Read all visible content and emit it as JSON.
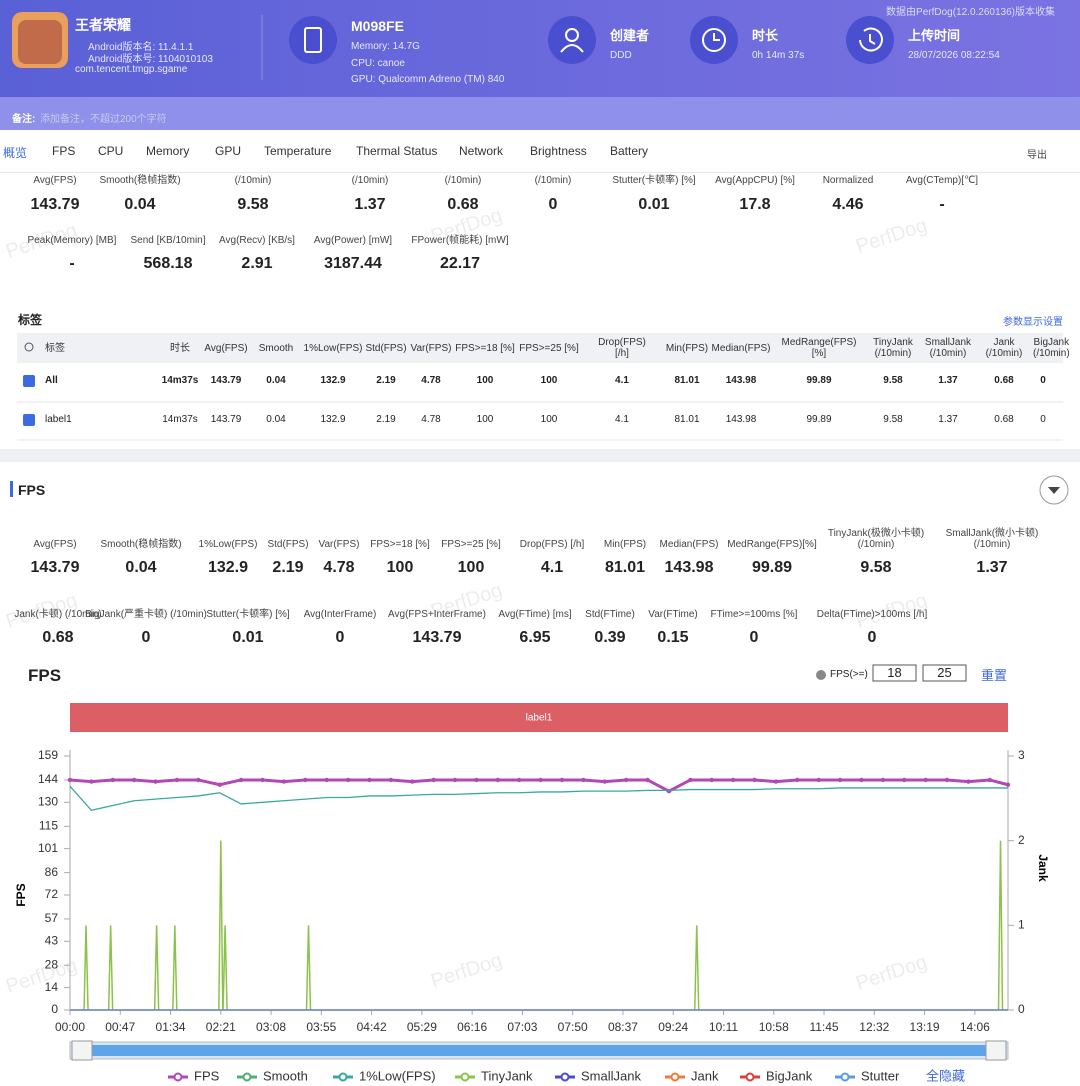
{
  "header": {
    "app_name": "王者荣耀",
    "version_name": "Android版本名: 11.4.1.1",
    "version_code": "Android版本号: 1104010103",
    "package": "com.tencent.tmgp.sgame",
    "device": "M098FE",
    "memory": "Memory: 14.7G",
    "cpu": "CPU: canoe",
    "gpu": "GPU: Qualcomm Adreno (TM) 840",
    "creator_label": "创建者",
    "creator": "DDD",
    "duration_label": "时长",
    "duration": "0h 14m 37s",
    "upload_label": "上传时间",
    "upload_time": "28/07/2026 08:22:54",
    "source_note": "数据由PerfDog(12.0.260136)版本收集"
  },
  "note": {
    "label": "备注:",
    "placeholder": "添加备注，不超过200个字符"
  },
  "tabs": [
    "概览",
    "FPS",
    "CPU",
    "Memory",
    "GPU",
    "Temperature",
    "Thermal Status",
    "Network",
    "Brightness",
    "Battery"
  ],
  "export": "导出",
  "summary": {
    "rows": [
      [
        {
          "label": "Avg(FPS)",
          "value": "143.79"
        },
        {
          "label": "Smooth(稳帧指数)",
          "value": "0.04"
        },
        {
          "label": "(/10min)",
          "value": "9.58"
        },
        {
          "label": "(/10min)",
          "value": "1.37"
        },
        {
          "label": "(/10min)",
          "value": "0.68"
        },
        {
          "label": "(/10min)",
          "value": "0"
        },
        {
          "label": "Stutter(卡顿率) [%]",
          "value": "0.01"
        },
        {
          "label": "Avg(AppCPU) [%]",
          "value": "17.8"
        },
        {
          "label": "Normalized",
          "value": "4.46"
        },
        {
          "label": "Avg(CTemp)[℃]",
          "value": "-"
        }
      ],
      [
        {
          "label": "Peak(Memory) [MB]",
          "value": "-"
        },
        {
          "label": "Send [KB/10min]",
          "value": "568.18"
        },
        {
          "label": "Avg(Recv) [KB/s]",
          "value": "2.91"
        },
        {
          "label": "Avg(Power) [mW]",
          "value": "3187.44"
        },
        {
          "label": "FPower(帧能耗) [mW]",
          "value": "22.17"
        }
      ]
    ]
  },
  "tags": {
    "title": "标签",
    "settings": "参数显示设置",
    "columns": [
      "标签",
      "时长",
      "Avg(FPS)",
      "Smooth",
      "1%Low(FPS)",
      "Std(FPS)",
      "Var(FPS)",
      "FPS>=18 [%]",
      "FPS>=25 [%]",
      "Drop(FPS) [/h]",
      "Min(FPS)",
      "Median(FPS)",
      "MedRange(FPS)[%]",
      "TinyJank (/10min)",
      "SmallJank (/10min)",
      "Jank (/10min)",
      "BigJank (/10min)"
    ],
    "rows": [
      [
        "All",
        "14m37s",
        "143.79",
        "0.04",
        "132.9",
        "2.19",
        "4.78",
        "100",
        "100",
        "4.1",
        "81.01",
        "143.98",
        "99.89",
        "9.58",
        "1.37",
        "0.68",
        "0"
      ],
      [
        "label1",
        "14m37s",
        "143.79",
        "0.04",
        "132.9",
        "2.19",
        "4.78",
        "100",
        "100",
        "4.1",
        "81.01",
        "143.98",
        "99.89",
        "9.58",
        "1.37",
        "0.68",
        "0"
      ]
    ]
  },
  "fps_section": {
    "title": "FPS",
    "stats": [
      [
        {
          "label": "Avg(FPS)",
          "value": "143.79"
        },
        {
          "label": "Smooth(稳帧指数)",
          "value": "0.04"
        },
        {
          "label": "1%Low(FPS)",
          "value": "132.9"
        },
        {
          "label": "Std(FPS)",
          "value": "2.19"
        },
        {
          "label": "Var(FPS)",
          "value": "4.78"
        },
        {
          "label": "FPS>=18 [%]",
          "value": "100"
        },
        {
          "label": "FPS>=25 [%]",
          "value": "100"
        },
        {
          "label": "Drop(FPS) [/h]",
          "value": "4.1"
        },
        {
          "label": "Min(FPS)",
          "value": "81.01"
        },
        {
          "label": "Median(FPS)",
          "value": "143.98"
        },
        {
          "label": "MedRange(FPS)[%]",
          "value": "99.89"
        },
        {
          "label": "TinyJank(极微小卡顿) (/10min)",
          "value": "9.58"
        },
        {
          "label": "SmallJank(微小卡顿) (/10min)",
          "value": "1.37"
        }
      ],
      [
        {
          "label": "Jank(卡顿) (/10min)",
          "value": "0.68"
        },
        {
          "label": "BigJank(严重卡顿) (/10min)",
          "value": "0"
        },
        {
          "label": "Stutter(卡顿率) [%]",
          "value": "0.01"
        },
        {
          "label": "Avg(InterFrame)",
          "value": "0"
        },
        {
          "label": "Avg(FPS+InterFrame)",
          "value": "143.79"
        },
        {
          "label": "Avg(FTime) [ms]",
          "value": "6.95"
        },
        {
          "label": "Std(FTime)",
          "value": "0.39"
        },
        {
          "label": "Var(FTime)",
          "value": "0.15"
        },
        {
          "label": "FTime>=100ms [%]",
          "value": "0"
        },
        {
          "label": "Delta(FTime)>100ms [/h]",
          "value": "0"
        }
      ]
    ]
  },
  "chart_data": {
    "type": "line",
    "title": "FPS",
    "threshold_label": "FPS(>=)",
    "thresholds": [
      18,
      25
    ],
    "reset": "重置",
    "band_label": "label1",
    "ylabel": "FPS",
    "y2label": "Jank",
    "ylim": [
      0,
      159
    ],
    "yticks": [
      0,
      14,
      28,
      43,
      57,
      72,
      86,
      101,
      115,
      130,
      144,
      159
    ],
    "y2lim": [
      0,
      3
    ],
    "y2ticks": [
      0,
      1,
      2,
      3
    ],
    "xlim": [
      0,
      877
    ],
    "xticks": [
      {
        "value": 0,
        "label": "00:00"
      },
      {
        "value": 47,
        "label": "00:47"
      },
      {
        "value": 94,
        "label": "01:34"
      },
      {
        "value": 141,
        "label": "02:21"
      },
      {
        "value": 188,
        "label": "03:08"
      },
      {
        "value": 235,
        "label": "03:55"
      },
      {
        "value": 282,
        "label": "04:42"
      },
      {
        "value": 329,
        "label": "05:29"
      },
      {
        "value": 376,
        "label": "06:16"
      },
      {
        "value": 423,
        "label": "07:03"
      },
      {
        "value": 470,
        "label": "07:50"
      },
      {
        "value": 517,
        "label": "08:37"
      },
      {
        "value": 564,
        "label": "09:24"
      },
      {
        "value": 611,
        "label": "10:11"
      },
      {
        "value": 658,
        "label": "10:58"
      },
      {
        "value": 705,
        "label": "11:45"
      },
      {
        "value": 752,
        "label": "12:32"
      },
      {
        "value": 799,
        "label": "13:19"
      },
      {
        "value": 846,
        "label": "14:06"
      }
    ],
    "x": [
      0,
      20,
      40,
      60,
      80,
      100,
      120,
      140,
      160,
      180,
      200,
      220,
      240,
      260,
      280,
      300,
      320,
      340,
      360,
      380,
      400,
      420,
      440,
      460,
      480,
      500,
      520,
      540,
      560,
      580,
      600,
      620,
      640,
      660,
      680,
      700,
      720,
      740,
      760,
      780,
      800,
      820,
      840,
      860,
      877
    ],
    "series": [
      {
        "name": "FPS",
        "color": "#b347b5",
        "values": [
          144,
          143,
          144,
          144,
          143,
          144,
          144,
          141,
          144,
          144,
          143,
          144,
          144,
          144,
          144,
          144,
          143,
          144,
          144,
          144,
          144,
          144,
          144,
          144,
          144,
          143,
          144,
          144,
          137,
          144,
          144,
          144,
          144,
          143,
          144,
          144,
          144,
          144,
          144,
          144,
          144,
          144,
          143,
          144,
          141
        ]
      },
      {
        "name": "Smooth",
        "color": "#4caf74"
      },
      {
        "name": "1%Low(FPS)",
        "color": "#3aa8a0",
        "values": [
          140,
          125,
          128,
          131,
          132,
          133,
          134,
          136,
          129,
          130,
          131,
          132,
          133,
          133,
          134,
          134,
          134.5,
          135,
          135,
          135.5,
          136,
          136,
          136.5,
          136.5,
          137,
          137,
          137,
          137.5,
          137.5,
          138,
          138,
          138,
          138,
          138.5,
          138.5,
          138.5,
          139,
          139,
          139,
          139,
          139,
          139,
          139,
          139,
          139
        ]
      },
      {
        "name": "TinyJank",
        "color": "#8bc34a",
        "axis": "y2",
        "x": [
          15,
          38,
          81,
          98,
          141,
          145,
          223,
          586,
          870
        ],
        "values": [
          1,
          1,
          1,
          1,
          2,
          1,
          1,
          1,
          2
        ]
      },
      {
        "name": "SmallJank",
        "color": "#4a4ad0",
        "axis": "y2",
        "x": [
          0,
          877
        ],
        "values": [
          0,
          0
        ]
      },
      {
        "name": "Jank",
        "color": "#f07a3a",
        "axis": "y2",
        "x": [
          0,
          877
        ],
        "values": [
          0,
          0
        ]
      },
      {
        "name": "BigJank",
        "color": "#d84040",
        "axis": "y2",
        "x": [
          0,
          877
        ],
        "values": [
          0,
          0
        ]
      },
      {
        "name": "Stutter",
        "color": "#5a9ae8",
        "axis": "y2",
        "x": [
          0,
          877
        ],
        "values": [
          0,
          0
        ]
      }
    ],
    "hide_all": "全隐藏"
  },
  "watermark": "PerfDog"
}
